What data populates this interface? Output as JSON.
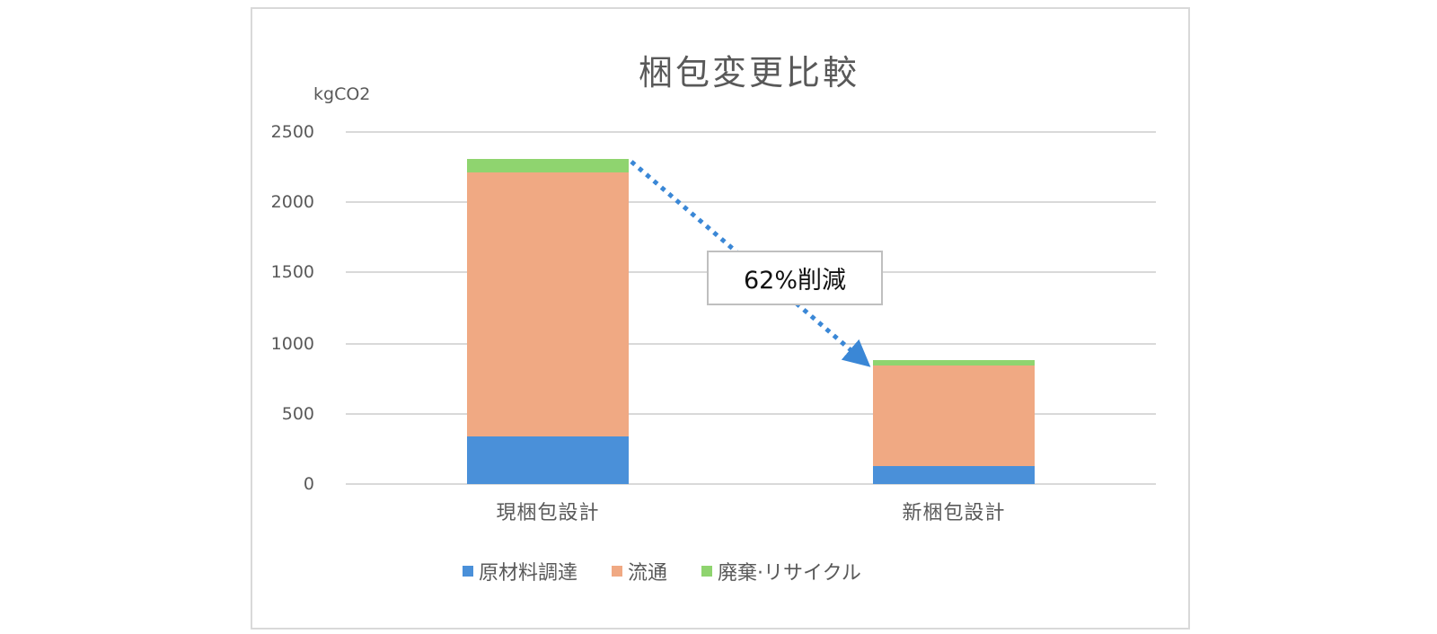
{
  "chart_data": {
    "type": "bar",
    "stacked": true,
    "title": "梱包変更比較",
    "ylabel": "kgCO2",
    "xlabel": "",
    "ylim": [
      0,
      2500
    ],
    "yticks": [
      0,
      500,
      1000,
      1500,
      2000,
      2500
    ],
    "grid": true,
    "legend_position": "bottom",
    "categories": [
      "現梱包設計",
      "新梱包設計"
    ],
    "series": [
      {
        "name": "原材料調達",
        "color": "#4a90d9",
        "values": [
          340,
          130
        ]
      },
      {
        "name": "流通",
        "color": "#f0a983",
        "values": [
          1870,
          713
        ]
      },
      {
        "name": "廃棄·リサイクル",
        "color": "#8fd46f",
        "values": [
          100,
          35
        ]
      }
    ],
    "totals": [
      2310,
      878
    ],
    "annotations": [
      {
        "text": "62%削減",
        "type": "callout-arrow",
        "from": "現梱包設計",
        "to": "新梱包設計",
        "arrow_color": "#3a87d6"
      }
    ]
  },
  "chart": {
    "title": "梱包変更比較",
    "unit_label": "kgCO2",
    "yticks": [
      "2500",
      "2000",
      "1500",
      "1000",
      "500",
      "0"
    ],
    "categories": [
      "現梱包設計",
      "新梱包設計"
    ],
    "legend": [
      "原材料調達",
      "流通",
      "廃棄·リサイクル"
    ],
    "callout": "62%削減"
  }
}
